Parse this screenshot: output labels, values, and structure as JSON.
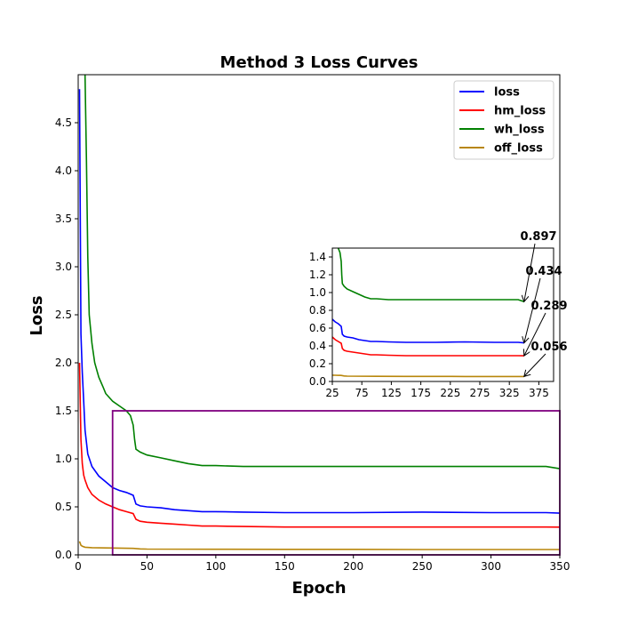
{
  "chart_data": {
    "type": "line",
    "title": "Method 3 Loss Curves",
    "xlabel": "Epoch",
    "ylabel": "Loss",
    "xlim": [
      0,
      350
    ],
    "ylim": [
      0,
      5.0
    ],
    "xticks": [
      0,
      50,
      100,
      150,
      200,
      250,
      300,
      350
    ],
    "yticks": [
      0.0,
      0.5,
      1.0,
      1.5,
      2.0,
      2.5,
      3.0,
      3.5,
      4.0,
      4.5
    ],
    "legend_position": "top-right",
    "series": [
      {
        "name": "loss",
        "color": "#0000ff",
        "x": [
          1,
          2,
          3,
          4,
          5,
          7,
          10,
          15,
          20,
          25,
          30,
          35,
          40,
          42,
          45,
          50,
          60,
          70,
          80,
          90,
          100,
          120,
          150,
          200,
          250,
          300,
          340,
          350
        ],
        "y": [
          4.85,
          2.3,
          1.9,
          1.6,
          1.3,
          1.05,
          0.92,
          0.82,
          0.76,
          0.7,
          0.67,
          0.65,
          0.62,
          0.53,
          0.51,
          0.5,
          0.49,
          0.47,
          0.46,
          0.45,
          0.45,
          0.445,
          0.44,
          0.44,
          0.445,
          0.44,
          0.44,
          0.434
        ]
      },
      {
        "name": "hm_loss",
        "color": "#ff0000",
        "x": [
          1,
          2,
          3,
          4,
          5,
          7,
          10,
          15,
          20,
          25,
          30,
          35,
          40,
          42,
          45,
          50,
          60,
          70,
          80,
          90,
          100,
          120,
          150,
          200,
          250,
          300,
          340,
          350
        ],
        "y": [
          2.0,
          1.2,
          0.95,
          0.83,
          0.78,
          0.7,
          0.63,
          0.57,
          0.53,
          0.5,
          0.47,
          0.45,
          0.43,
          0.37,
          0.35,
          0.34,
          0.33,
          0.32,
          0.31,
          0.3,
          0.3,
          0.295,
          0.29,
          0.29,
          0.29,
          0.29,
          0.29,
          0.289
        ]
      },
      {
        "name": "wh_loss",
        "color": "#008000",
        "x": [
          5,
          6,
          7,
          8,
          10,
          12,
          15,
          18,
          20,
          25,
          30,
          35,
          38,
          40,
          41,
          42,
          45,
          50,
          60,
          70,
          80,
          90,
          100,
          120,
          150,
          200,
          250,
          300,
          340,
          350
        ],
        "y": [
          5.0,
          4.1,
          3.1,
          2.5,
          2.2,
          2.0,
          1.85,
          1.75,
          1.68,
          1.6,
          1.55,
          1.5,
          1.45,
          1.35,
          1.2,
          1.1,
          1.07,
          1.04,
          1.01,
          0.98,
          0.95,
          0.93,
          0.93,
          0.92,
          0.92,
          0.92,
          0.92,
          0.92,
          0.92,
          0.897
        ]
      },
      {
        "name": "off_loss",
        "color": "#b8860b",
        "x": [
          1,
          2,
          3,
          5,
          10,
          20,
          30,
          40,
          45,
          50,
          100,
          150,
          200,
          250,
          300,
          350
        ],
        "y": [
          0.14,
          0.1,
          0.09,
          0.08,
          0.075,
          0.072,
          0.07,
          0.068,
          0.062,
          0.06,
          0.058,
          0.057,
          0.057,
          0.056,
          0.056,
          0.056
        ]
      }
    ],
    "zoom_box": {
      "x": [
        25,
        350
      ],
      "y": [
        0,
        1.5
      ],
      "color": "#800080"
    },
    "inset": {
      "xlim": [
        25,
        400
      ],
      "ylim": [
        0,
        1.5
      ],
      "xticks": [
        25,
        75,
        125,
        175,
        225,
        275,
        325,
        375
      ],
      "yticks": [
        0.0,
        0.2,
        0.4,
        0.6,
        0.8,
        1.0,
        1.2,
        1.4
      ],
      "annotations": [
        "0.897",
        "0.434",
        "0.289",
        "0.056"
      ]
    }
  }
}
